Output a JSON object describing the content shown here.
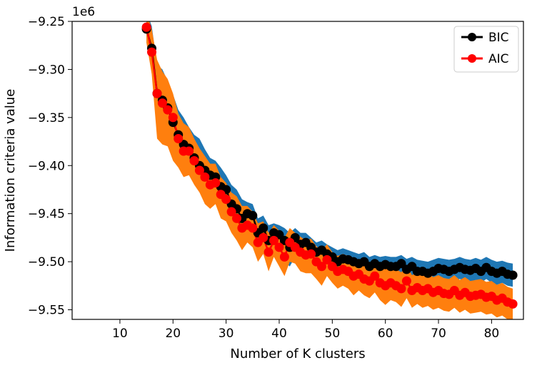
{
  "chart_data": {
    "type": "line",
    "title": "",
    "xlabel": "Number of K clusters",
    "ylabel": "Information criteria value",
    "offset_text": "1e6",
    "xlim": [
      1,
      86
    ],
    "ylim": [
      -9.56,
      -9.25
    ],
    "x_ticks": [
      10,
      20,
      30,
      40,
      50,
      60,
      70,
      80
    ],
    "x_tick_labels": [
      "10",
      "20",
      "30",
      "40",
      "50",
      "60",
      "70",
      "80"
    ],
    "y_ticks": [
      -9.25,
      -9.3,
      -9.35,
      -9.4,
      -9.45,
      -9.5,
      -9.55
    ],
    "y_tick_labels": [
      "−9.25",
      "−9.30",
      "−9.35",
      "−9.40",
      "−9.45",
      "−9.50",
      "−9.55"
    ],
    "grid": false,
    "legend_position": "top-right",
    "x": [
      15,
      16,
      17,
      18,
      19,
      20,
      21,
      22,
      23,
      24,
      25,
      26,
      27,
      28,
      29,
      30,
      31,
      32,
      33,
      34,
      35,
      36,
      37,
      38,
      39,
      40,
      41,
      42,
      43,
      44,
      45,
      46,
      47,
      48,
      49,
      50,
      51,
      52,
      53,
      54,
      55,
      56,
      57,
      58,
      59,
      60,
      61,
      62,
      63,
      64,
      65,
      66,
      67,
      68,
      69,
      70,
      71,
      72,
      73,
      74,
      75,
      76,
      77,
      78,
      79,
      80,
      81,
      82,
      83,
      84
    ],
    "series": [
      {
        "name": "BIC",
        "color": "#000000",
        "band_color": "#1f77b4",
        "values": [
          -9.258,
          -9.278,
          -9.325,
          -9.332,
          -9.34,
          -9.355,
          -9.368,
          -9.378,
          -9.382,
          -9.392,
          -9.4,
          -9.405,
          -9.41,
          -9.412,
          -9.422,
          -9.425,
          -9.44,
          -9.445,
          -9.455,
          -9.45,
          -9.452,
          -9.47,
          -9.465,
          -9.478,
          -9.47,
          -9.472,
          -9.478,
          -9.485,
          -9.475,
          -9.482,
          -9.48,
          -9.485,
          -9.49,
          -9.488,
          -9.492,
          -9.495,
          -9.5,
          -9.497,
          -9.498,
          -9.5,
          -9.502,
          -9.5,
          -9.505,
          -9.502,
          -9.505,
          -9.503,
          -9.505,
          -9.505,
          -9.502,
          -9.508,
          -9.505,
          -9.51,
          -9.51,
          -9.512,
          -9.51,
          -9.507,
          -9.508,
          -9.51,
          -9.508,
          -9.506,
          -9.508,
          -9.509,
          -9.507,
          -9.51,
          -9.506,
          -9.51,
          -9.512,
          -9.51,
          -9.513,
          -9.514
        ],
        "band_upper": [
          -9.24,
          -9.255,
          -9.295,
          -9.3,
          -9.312,
          -9.326,
          -9.342,
          -9.35,
          -9.36,
          -9.368,
          -9.372,
          -9.383,
          -9.392,
          -9.395,
          -9.402,
          -9.41,
          -9.42,
          -9.425,
          -9.435,
          -9.438,
          -9.44,
          -9.455,
          -9.452,
          -9.462,
          -9.46,
          -9.462,
          -9.465,
          -9.47,
          -9.465,
          -9.47,
          -9.47,
          -9.475,
          -9.48,
          -9.478,
          -9.482,
          -9.485,
          -9.488,
          -9.486,
          -9.488,
          -9.49,
          -9.492,
          -9.49,
          -9.495,
          -9.493,
          -9.495,
          -9.494,
          -9.495,
          -9.495,
          -9.493,
          -9.497,
          -9.495,
          -9.498,
          -9.499,
          -9.5,
          -9.498,
          -9.496,
          -9.497,
          -9.498,
          -9.497,
          -9.495,
          -9.497,
          -9.498,
          -9.496,
          -9.498,
          -9.495,
          -9.498,
          -9.5,
          -9.499,
          -9.501,
          -9.502
        ],
        "band_lower": [
          -9.272,
          -9.3,
          -9.352,
          -9.365,
          -9.378,
          -9.385,
          -9.398,
          -9.405,
          -9.405,
          -9.418,
          -9.422,
          -9.432,
          -9.435,
          -9.438,
          -9.445,
          -9.45,
          -9.46,
          -9.47,
          -9.475,
          -9.472,
          -9.478,
          -9.488,
          -9.485,
          -9.495,
          -9.49,
          -9.495,
          -9.5,
          -9.505,
          -9.495,
          -9.5,
          -9.498,
          -9.505,
          -9.508,
          -9.507,
          -9.51,
          -9.512,
          -9.515,
          -9.512,
          -9.512,
          -9.515,
          -9.518,
          -9.515,
          -9.518,
          -9.516,
          -9.518,
          -9.516,
          -9.518,
          -9.518,
          -9.515,
          -9.521,
          -9.518,
          -9.522,
          -9.522,
          -9.524,
          -9.522,
          -9.52,
          -9.521,
          -9.522,
          -9.52,
          -9.518,
          -9.52,
          -9.521,
          -9.519,
          -9.522,
          -9.518,
          -9.522,
          -9.524,
          -9.522,
          -9.525,
          -9.526
        ]
      },
      {
        "name": "AIC",
        "color": "#ff0000",
        "band_color": "#ff7f0e",
        "values": [
          -9.256,
          -9.282,
          -9.325,
          -9.335,
          -9.342,
          -9.35,
          -9.372,
          -9.385,
          -9.385,
          -9.395,
          -9.405,
          -9.412,
          -9.42,
          -9.418,
          -9.43,
          -9.435,
          -9.448,
          -9.455,
          -9.465,
          -9.462,
          -9.465,
          -9.48,
          -9.475,
          -9.49,
          -9.478,
          -9.485,
          -9.495,
          -9.48,
          -9.485,
          -9.49,
          -9.493,
          -9.492,
          -9.5,
          -9.505,
          -9.498,
          -9.505,
          -9.51,
          -9.508,
          -9.51,
          -9.515,
          -9.513,
          -9.518,
          -9.52,
          -9.515,
          -9.522,
          -9.525,
          -9.522,
          -9.525,
          -9.528,
          -9.52,
          -9.53,
          -9.527,
          -9.53,
          -9.528,
          -9.532,
          -9.53,
          -9.533,
          -9.534,
          -9.53,
          -9.535,
          -9.532,
          -9.536,
          -9.535,
          -9.534,
          -9.537,
          -9.536,
          -9.54,
          -9.538,
          -9.542,
          -9.544
        ],
        "band_upper": [
          -9.24,
          -9.258,
          -9.29,
          -9.302,
          -9.31,
          -9.325,
          -9.346,
          -9.356,
          -9.36,
          -9.372,
          -9.382,
          -9.39,
          -9.398,
          -9.398,
          -9.412,
          -9.418,
          -9.428,
          -9.432,
          -9.442,
          -9.442,
          -9.448,
          -9.46,
          -9.458,
          -9.47,
          -9.462,
          -9.468,
          -9.475,
          -9.465,
          -9.47,
          -9.474,
          -9.478,
          -9.476,
          -9.484,
          -9.488,
          -9.482,
          -9.49,
          -9.494,
          -9.492,
          -9.494,
          -9.499,
          -9.497,
          -9.502,
          -9.504,
          -9.499,
          -9.505,
          -9.508,
          -9.505,
          -9.508,
          -9.511,
          -9.504,
          -9.514,
          -9.511,
          -9.514,
          -9.512,
          -9.516,
          -9.514,
          -9.517,
          -9.518,
          -9.514,
          -9.519,
          -9.516,
          -9.52,
          -9.519,
          -9.518,
          -9.521,
          -9.52,
          -9.524,
          -9.522,
          -9.526,
          -9.528
        ],
        "band_lower": [
          -9.272,
          -9.305,
          -9.372,
          -9.378,
          -9.38,
          -9.395,
          -9.402,
          -9.412,
          -9.41,
          -9.42,
          -9.428,
          -9.44,
          -9.445,
          -9.44,
          -9.455,
          -9.458,
          -9.47,
          -9.478,
          -9.488,
          -9.48,
          -9.485,
          -9.5,
          -9.492,
          -9.51,
          -9.495,
          -9.505,
          -9.515,
          -9.5,
          -9.502,
          -9.51,
          -9.512,
          -9.512,
          -9.518,
          -9.525,
          -9.515,
          -9.522,
          -9.528,
          -9.525,
          -9.528,
          -9.535,
          -9.53,
          -9.535,
          -9.538,
          -9.532,
          -9.54,
          -9.545,
          -9.54,
          -9.542,
          -9.547,
          -9.538,
          -9.548,
          -9.544,
          -9.548,
          -9.546,
          -9.55,
          -9.548,
          -9.551,
          -9.552,
          -9.548,
          -9.553,
          -9.55,
          -9.554,
          -9.553,
          -9.552,
          -9.555,
          -9.554,
          -9.558,
          -9.556,
          -9.56,
          -9.562
        ]
      }
    ]
  }
}
